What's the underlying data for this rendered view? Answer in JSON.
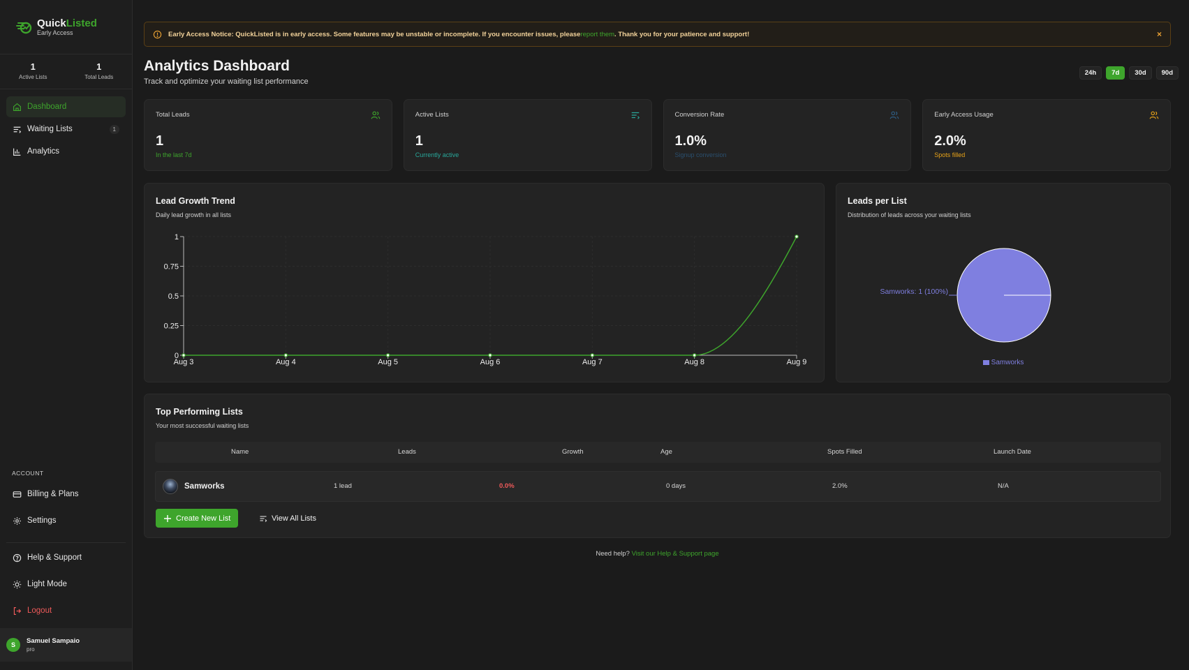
{
  "brand": {
    "name_a": "Quick",
    "name_b": "Listed",
    "sub": "Early Access"
  },
  "sidebar": {
    "stats": [
      {
        "value": "1",
        "label": "Active Lists"
      },
      {
        "value": "1",
        "label": "Total Leads"
      }
    ],
    "nav": [
      {
        "label": "Dashboard",
        "icon": "home-icon"
      },
      {
        "label": "Waiting Lists",
        "icon": "list-icon",
        "badge": "1"
      },
      {
        "label": "Analytics",
        "icon": "bar-chart-icon"
      }
    ],
    "account_label": "ACCOUNT",
    "account_nav": [
      {
        "label": "Billing & Plans",
        "icon": "credit-card-icon"
      },
      {
        "label": "Settings",
        "icon": "gear-icon"
      }
    ],
    "bottom_nav": [
      {
        "label": "Help & Support",
        "icon": "help-circle-icon"
      },
      {
        "label": "Light Mode",
        "icon": "sun-icon"
      },
      {
        "label": "Logout",
        "icon": "logout-icon"
      }
    ],
    "user": {
      "initial": "S",
      "name": "Samuel Sampaio",
      "plan": "pro"
    }
  },
  "notice": {
    "text_before": "Early Access Notice: QuickListed is in early access. Some features may be unstable or incomplete. If you encounter issues, please ",
    "link": "report them",
    "text_after": ". Thank you for your patience and support!",
    "close": "×"
  },
  "header": {
    "title": "Analytics Dashboard",
    "subtitle": "Track and optimize your waiting list performance",
    "ranges": [
      "24h",
      "7d",
      "30d",
      "90d"
    ],
    "active_range": "7d"
  },
  "cards": [
    {
      "label": "Total Leads",
      "value": "1",
      "sub": "In the last 7d",
      "color": "#3ea52c",
      "icon": "users-icon"
    },
    {
      "label": "Active Lists",
      "value": "1",
      "sub": "Currently active",
      "color": "#28a79a",
      "icon": "list-icon"
    },
    {
      "label": "Conversion Rate",
      "value": "1.0%",
      "sub": "Signup conversion",
      "color": "#2a4f6e",
      "icon": "users-icon"
    },
    {
      "label": "Early Access Usage",
      "value": "2.0%",
      "sub": "Spots filled",
      "color": "#e8a318",
      "icon": "users-icon"
    }
  ],
  "lead_growth": {
    "title": "Lead Growth Trend",
    "subtitle": "Daily lead growth in all lists"
  },
  "leads_per_list": {
    "title": "Leads per List",
    "subtitle": "Distribution of leads across your waiting lists",
    "label": "Samworks: 1 (100%)",
    "legend": "Samworks"
  },
  "chart_data": [
    {
      "type": "line",
      "title": "Lead Growth Trend",
      "categories": [
        "Aug 3",
        "Aug 4",
        "Aug 5",
        "Aug 6",
        "Aug 7",
        "Aug 8",
        "Aug 9"
      ],
      "values": [
        0,
        0,
        0,
        0,
        0,
        0,
        1
      ],
      "y_ticks": [
        "0",
        "0.25",
        "0.5",
        "0.75",
        "1"
      ],
      "ylim": [
        0,
        1
      ],
      "color": "#3ea52c"
    },
    {
      "type": "pie",
      "title": "Leads per List",
      "categories": [
        "Samworks"
      ],
      "values": [
        1
      ],
      "color": "#7f7fe0"
    }
  ],
  "top_lists": {
    "title": "Top Performing Lists",
    "subtitle": "Your most successful waiting lists",
    "columns": [
      "Name",
      "Leads",
      "Growth",
      "Age",
      "Spots Filled",
      "Launch Date"
    ],
    "rows": [
      {
        "name": "Samworks",
        "leads": "1 lead",
        "growth": "0.0%",
        "age": "0 days",
        "spots": "2.0%",
        "launch": "N/A"
      }
    ],
    "create_button": "Create New List",
    "view_all_button": "View All Lists"
  },
  "help": {
    "text": "Need help?",
    "link": "Visit our Help & Support page"
  }
}
